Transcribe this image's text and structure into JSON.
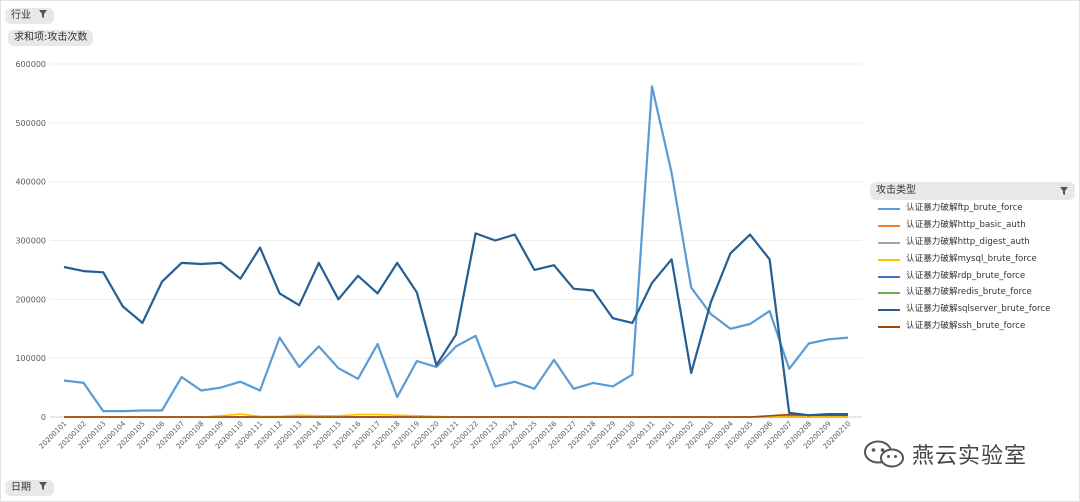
{
  "filters": {
    "industry": "行业",
    "measure": "求和项:攻击次数",
    "date": "日期"
  },
  "legend": {
    "title": "攻击类型"
  },
  "watermark": {
    "text": "燕云实验室",
    "icon": "wechat-icon"
  },
  "chart_data": {
    "type": "line",
    "title": "",
    "xlabel": "",
    "ylabel": "",
    "ylim": [
      0,
      600000
    ],
    "yticks": [
      0,
      100000,
      200000,
      300000,
      400000,
      500000,
      600000
    ],
    "grid": true,
    "legend_position": "right",
    "categories": [
      "20200101",
      "20200102",
      "20200103",
      "20200104",
      "20200105",
      "20200106",
      "20200107",
      "20200108",
      "20200109",
      "20200110",
      "20200111",
      "20200112",
      "20200113",
      "20200114",
      "20200115",
      "20200116",
      "20200117",
      "20200118",
      "20200119",
      "20200120",
      "20200121",
      "20200122",
      "20200123",
      "20200124",
      "20200125",
      "20200126",
      "20200127",
      "20200128",
      "20200129",
      "20200130",
      "20200131",
      "20200201",
      "20200202",
      "20200203",
      "20200204",
      "20200205",
      "20200206",
      "20200207",
      "20200208",
      "20200209",
      "20200210"
    ],
    "series": [
      {
        "name": "认证暴力破解ftp_brute_force",
        "color": "#5b9bd5",
        "values": [
          62000,
          58000,
          10000,
          10000,
          11000,
          11000,
          68000,
          45000,
          50000,
          60000,
          45000,
          135000,
          85000,
          120000,
          83000,
          65000,
          124000,
          34000,
          95000,
          85000,
          120000,
          138000,
          52000,
          60000,
          48000,
          97000,
          48000,
          58000,
          52000,
          72000,
          562000,
          415000,
          220000,
          175000,
          150000,
          158000,
          180000,
          82000,
          125000,
          132000,
          135000
        ]
      },
      {
        "name": "认证暴力破解http_basic_auth",
        "color": "#ed7d31",
        "values": [
          0,
          0,
          0,
          0,
          0,
          0,
          0,
          0,
          0,
          0,
          0,
          0,
          0,
          0,
          0,
          0,
          0,
          0,
          0,
          0,
          0,
          0,
          0,
          0,
          0,
          0,
          0,
          0,
          0,
          0,
          0,
          0,
          0,
          0,
          0,
          0,
          0,
          2000,
          2000,
          2000,
          2000
        ]
      },
      {
        "name": "认证暴力破解http_digest_auth",
        "color": "#a5a5a5",
        "values": [
          0,
          0,
          0,
          0,
          0,
          0,
          0,
          0,
          0,
          0,
          0,
          0,
          0,
          0,
          0,
          0,
          0,
          0,
          0,
          0,
          0,
          0,
          0,
          0,
          0,
          0,
          0,
          0,
          0,
          0,
          0,
          0,
          0,
          0,
          0,
          0,
          0,
          0,
          0,
          0,
          0
        ]
      },
      {
        "name": "认证暴力破解mysql_brute_force",
        "color": "#ffc000",
        "values": [
          0,
          0,
          0,
          0,
          0,
          0,
          0,
          0,
          2000,
          5000,
          1000,
          1000,
          3000,
          2000,
          2000,
          4000,
          4000,
          3000,
          2000,
          1000,
          0,
          0,
          0,
          0,
          0,
          0,
          0,
          0,
          0,
          0,
          0,
          0,
          0,
          0,
          0,
          0,
          0,
          0,
          0,
          0,
          0
        ]
      },
      {
        "name": "认证暴力破解rdp_brute_force",
        "color": "#4472c4",
        "values": [
          0,
          0,
          0,
          0,
          0,
          0,
          0,
          0,
          0,
          0,
          0,
          0,
          0,
          0,
          0,
          0,
          0,
          0,
          0,
          0,
          0,
          0,
          0,
          0,
          0,
          0,
          0,
          0,
          0,
          0,
          0,
          0,
          0,
          0,
          0,
          0,
          0,
          3000,
          3000,
          3000,
          3000
        ]
      },
      {
        "name": "认证暴力破解redis_brute_force",
        "color": "#70ad47",
        "values": [
          0,
          0,
          0,
          0,
          0,
          0,
          0,
          0,
          0,
          0,
          0,
          0,
          0,
          0,
          0,
          0,
          0,
          0,
          0,
          0,
          0,
          0,
          0,
          0,
          0,
          0,
          0,
          0,
          0,
          0,
          0,
          0,
          0,
          0,
          0,
          0,
          0,
          0,
          0,
          0,
          0
        ]
      },
      {
        "name": "认证暴力破解sqlserver_brute_force",
        "color": "#255e91",
        "values": [
          255000,
          248000,
          246000,
          188000,
          160000,
          230000,
          262000,
          260000,
          262000,
          235000,
          288000,
          210000,
          190000,
          262000,
          200000,
          240000,
          210000,
          262000,
          212000,
          88000,
          140000,
          312000,
          300000,
          310000,
          250000,
          258000,
          218000,
          215000,
          168000,
          160000,
          228000,
          268000,
          75000,
          195000,
          278000,
          310000,
          268000,
          7000,
          3000,
          5000,
          5000
        ]
      },
      {
        "name": "认证暴力破解ssh_brute_force",
        "color": "#9e480e",
        "values": [
          0,
          0,
          0,
          0,
          0,
          0,
          0,
          0,
          0,
          0,
          0,
          0,
          0,
          0,
          0,
          0,
          0,
          0,
          0,
          0,
          0,
          0,
          0,
          0,
          0,
          0,
          0,
          0,
          0,
          0,
          0,
          0,
          0,
          0,
          0,
          0,
          2000,
          4000,
          3000,
          3000,
          3000
        ]
      }
    ]
  }
}
